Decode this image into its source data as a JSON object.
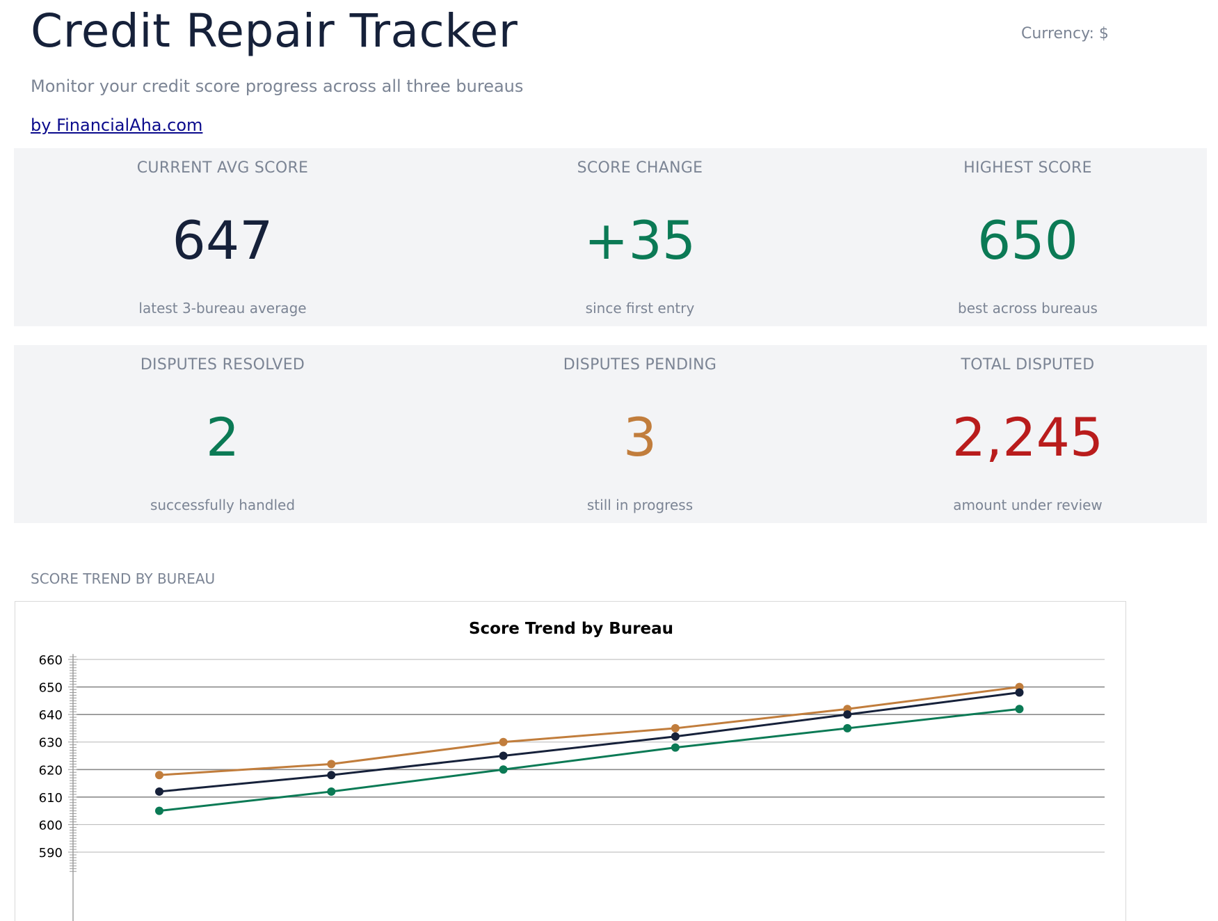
{
  "header": {
    "title": "Credit Repair Tracker",
    "subtitle": "Monitor your credit score progress across all three bureaus",
    "byline": "by FinancialAha.com",
    "currency": "Currency: $"
  },
  "colors": {
    "navy": "#16213a",
    "green": "#0b7a55",
    "orange": "#c17d3c",
    "red": "#b91c1c",
    "muted": "#7b8494",
    "panel": "#f3f4f6"
  },
  "summary": [
    {
      "label": "CURRENT AVG SCORE",
      "value": "647",
      "note": "latest 3-bureau average",
      "color": "#16213a"
    },
    {
      "label": "SCORE CHANGE",
      "value": "+35",
      "note": "since first entry",
      "color": "#0b7a55"
    },
    {
      "label": "HIGHEST SCORE",
      "value": "650",
      "note": "best across bureaus",
      "color": "#0b7a55"
    }
  ],
  "disputes": [
    {
      "label": "DISPUTES RESOLVED",
      "value": "2",
      "note": "successfully handled",
      "color": "#0b7a55"
    },
    {
      "label": "DISPUTES PENDING",
      "value": "3",
      "note": "still in progress",
      "color": "#c17d3c"
    },
    {
      "label": "TOTAL DISPUTED",
      "value": "2,245",
      "note": "amount under review",
      "color": "#b91c1c"
    }
  ],
  "chart_section_label": "SCORE TREND BY BUREAU",
  "chart_data": {
    "type": "line",
    "title": "Score Trend by Bureau",
    "xlabel": "",
    "ylabel": "",
    "ylim": [
      583,
      660
    ],
    "yticks": [
      590,
      600,
      610,
      620,
      630,
      640,
      650,
      660
    ],
    "grid": true,
    "x": [
      1,
      2,
      3,
      4,
      5,
      6
    ],
    "series": [
      {
        "color": "#c17d3c",
        "values": [
          618,
          622,
          630,
          635,
          642,
          650
        ]
      },
      {
        "color": "#16213a",
        "values": [
          612,
          618,
          625,
          632,
          640,
          648
        ]
      },
      {
        "color": "#0b7a55",
        "values": [
          605,
          612,
          620,
          628,
          635,
          642
        ]
      }
    ]
  }
}
